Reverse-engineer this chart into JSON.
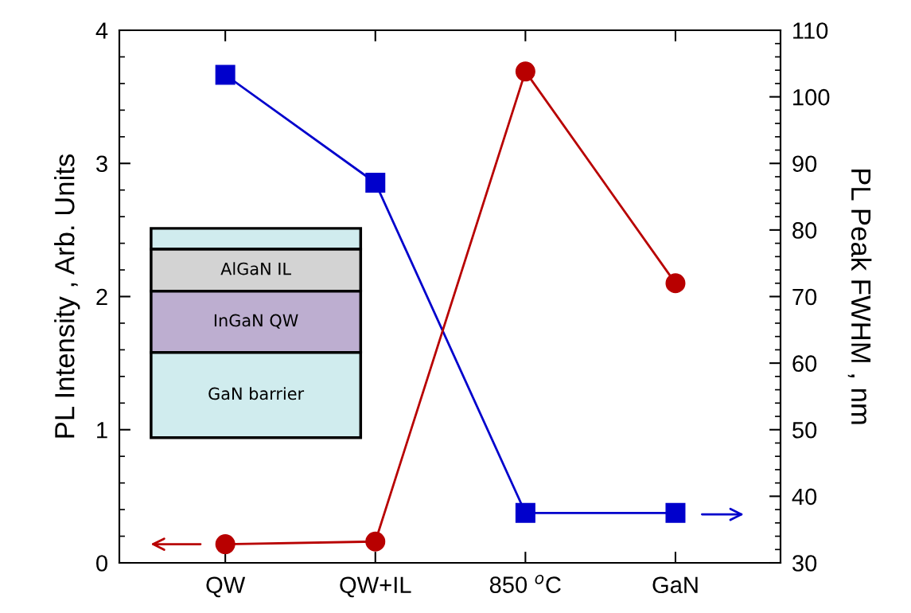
{
  "chart_data": {
    "type": "line",
    "categories": [
      "QW",
      "QW+IL",
      "850 $^{o}$C",
      "GaN"
    ],
    "ylabel": "PL Intensity , Arb. Units",
    "y2label": "PL Peak FWHM , nm",
    "ylim": [
      0,
      4
    ],
    "yticks": [
      0,
      1,
      2,
      3,
      4
    ],
    "y2lim": [
      30,
      110
    ],
    "y2ticks": [
      30,
      40,
      50,
      60,
      70,
      80,
      90,
      100,
      110
    ],
    "grid": false,
    "legend": false,
    "line_style": "solid",
    "series": [
      {
        "color": "#b80000",
        "marker": "circle",
        "values": [
          0.14,
          0.16,
          3.69,
          2.1
        ]
      },
      {
        "color": "#0000cc",
        "marker": "square",
        "axis": "y2",
        "values": [
          103.3,
          87.1,
          37.5,
          37.5
        ]
      }
    ],
    "annotations": [
      "AlGaN IL",
      "InGaN QW",
      "GaN barrier"
    ]
  }
}
